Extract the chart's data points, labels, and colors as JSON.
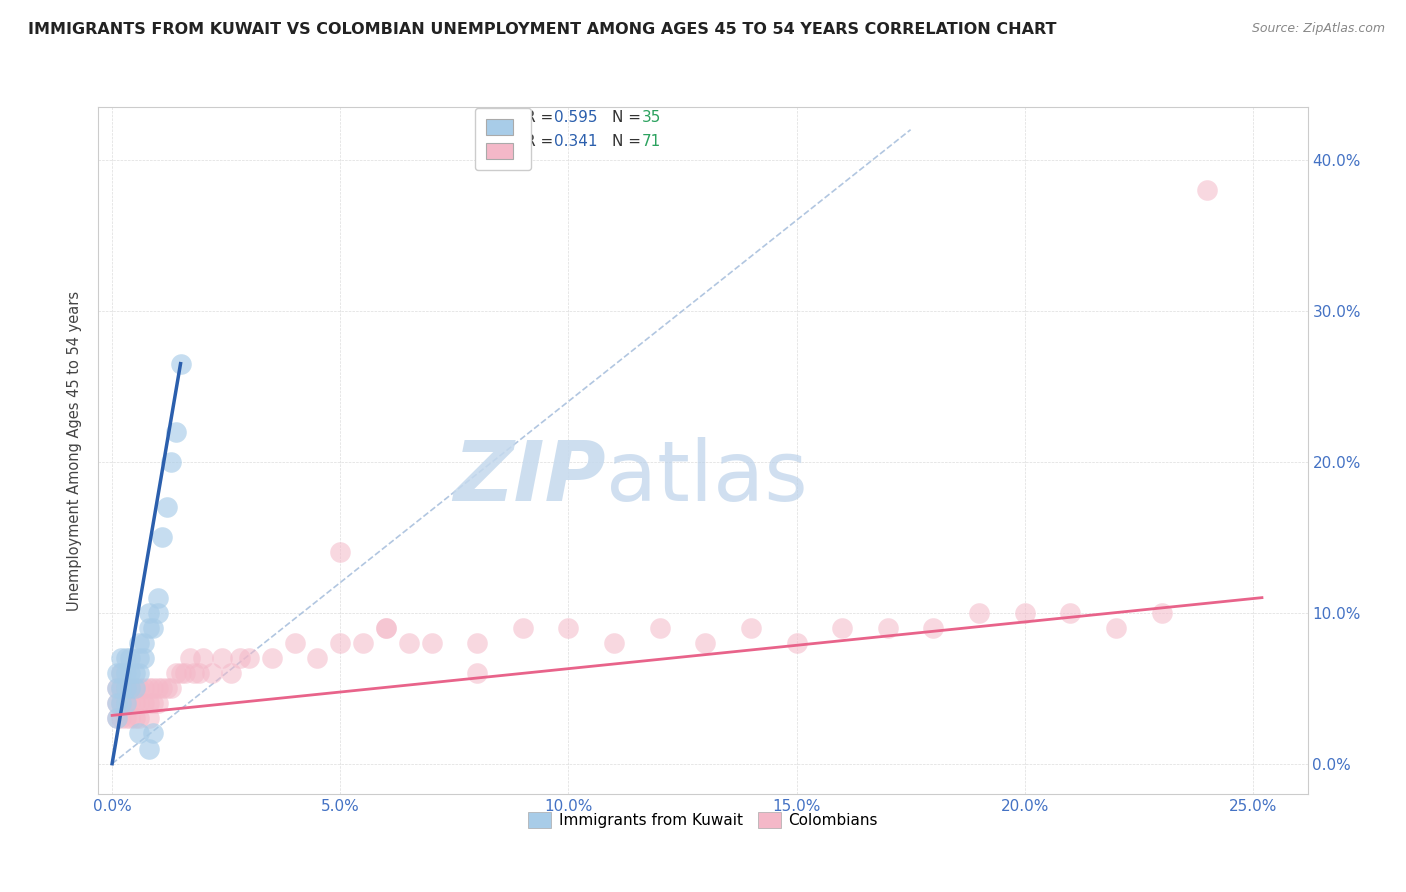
{
  "title": "IMMIGRANTS FROM KUWAIT VS COLOMBIAN UNEMPLOYMENT AMONG AGES 45 TO 54 YEARS CORRELATION CHART",
  "source": "Source: ZipAtlas.com",
  "xlabel_ticks": [
    "0.0%",
    "5.0%",
    "10.0%",
    "15.0%",
    "20.0%",
    "25.0%"
  ],
  "ylabel_left_ticks": [
    "",
    "",
    "",
    "",
    ""
  ],
  "ylabel_right_ticks": [
    "40.0%",
    "30.0%",
    "20.0%",
    "10.0%",
    "0.0%"
  ],
  "xlabel_vals": [
    0.0,
    0.05,
    0.1,
    0.15,
    0.2,
    0.25
  ],
  "ylabel_vals": [
    0.0,
    0.1,
    0.2,
    0.3,
    0.4
  ],
  "xlim": [
    -0.003,
    0.262
  ],
  "ylim": [
    -0.02,
    0.435
  ],
  "ylabel": "Unemployment Among Ages 45 to 54 years",
  "legend_blue_r": "R = 0.595",
  "legend_blue_n": "N = 35",
  "legend_pink_r": "R = 0.341",
  "legend_pink_n": "N = 71",
  "blue_scatter_color": "#a8cce8",
  "pink_scatter_color": "#f4b8c8",
  "blue_line_color": "#2b5fad",
  "pink_line_color": "#e8638a",
  "dash_line_color": "#9eb8d9",
  "legend_r_color": "#2b5fad",
  "legend_n_color": "#2ca25f",
  "tick_color": "#4472c4",
  "watermark_color": "#d0e4f2",
  "background_color": "#ffffff",
  "grid_color": "#dddddd",
  "blue_scatter_x": [
    0.001,
    0.001,
    0.001,
    0.001,
    0.002,
    0.002,
    0.002,
    0.002,
    0.003,
    0.003,
    0.003,
    0.003,
    0.004,
    0.004,
    0.004,
    0.005,
    0.005,
    0.006,
    0.006,
    0.006,
    0.007,
    0.007,
    0.008,
    0.008,
    0.009,
    0.01,
    0.01,
    0.011,
    0.012,
    0.013,
    0.014,
    0.015,
    0.006,
    0.008,
    0.009
  ],
  "blue_scatter_y": [
    0.04,
    0.05,
    0.06,
    0.03,
    0.04,
    0.05,
    0.06,
    0.07,
    0.04,
    0.05,
    0.06,
    0.07,
    0.05,
    0.06,
    0.07,
    0.05,
    0.06,
    0.06,
    0.07,
    0.08,
    0.07,
    0.08,
    0.09,
    0.1,
    0.09,
    0.1,
    0.11,
    0.15,
    0.17,
    0.2,
    0.22,
    0.265,
    0.02,
    0.01,
    0.02
  ],
  "pink_scatter_x": [
    0.001,
    0.001,
    0.001,
    0.002,
    0.002,
    0.002,
    0.002,
    0.003,
    0.003,
    0.003,
    0.004,
    0.004,
    0.004,
    0.005,
    0.005,
    0.005,
    0.006,
    0.006,
    0.006,
    0.007,
    0.007,
    0.008,
    0.008,
    0.008,
    0.009,
    0.009,
    0.01,
    0.01,
    0.011,
    0.012,
    0.013,
    0.014,
    0.015,
    0.016,
    0.017,
    0.018,
    0.019,
    0.02,
    0.022,
    0.024,
    0.026,
    0.028,
    0.03,
    0.035,
    0.04,
    0.045,
    0.05,
    0.055,
    0.06,
    0.065,
    0.07,
    0.08,
    0.09,
    0.1,
    0.11,
    0.12,
    0.13,
    0.14,
    0.15,
    0.16,
    0.17,
    0.18,
    0.19,
    0.2,
    0.21,
    0.22,
    0.23,
    0.24,
    0.05,
    0.06,
    0.08
  ],
  "pink_scatter_y": [
    0.03,
    0.04,
    0.05,
    0.03,
    0.04,
    0.05,
    0.06,
    0.03,
    0.04,
    0.05,
    0.03,
    0.04,
    0.05,
    0.03,
    0.04,
    0.05,
    0.03,
    0.04,
    0.05,
    0.04,
    0.05,
    0.03,
    0.04,
    0.05,
    0.04,
    0.05,
    0.04,
    0.05,
    0.05,
    0.05,
    0.05,
    0.06,
    0.06,
    0.06,
    0.07,
    0.06,
    0.06,
    0.07,
    0.06,
    0.07,
    0.06,
    0.07,
    0.07,
    0.07,
    0.08,
    0.07,
    0.08,
    0.08,
    0.09,
    0.08,
    0.08,
    0.08,
    0.09,
    0.09,
    0.08,
    0.09,
    0.08,
    0.09,
    0.08,
    0.09,
    0.09,
    0.09,
    0.1,
    0.1,
    0.1,
    0.09,
    0.1,
    0.38,
    0.14,
    0.09,
    0.06
  ],
  "blue_line_x": [
    0.0,
    0.015
  ],
  "blue_line_y": [
    0.0,
    0.265
  ],
  "pink_line_x": [
    0.0,
    0.252
  ],
  "pink_line_y": [
    0.032,
    0.11
  ],
  "dash_line_x": [
    0.0,
    0.175
  ],
  "dash_line_y": [
    0.0,
    0.42
  ]
}
